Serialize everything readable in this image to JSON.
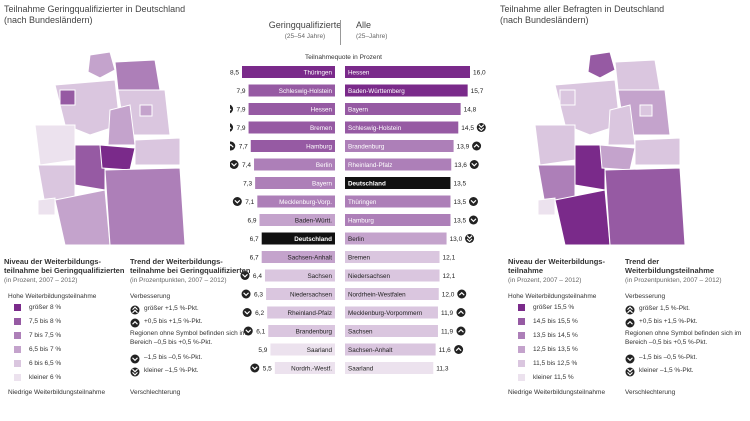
{
  "left_map": {
    "title": "Teilnahme Geringqualifizierter in Deutschland",
    "subtitle": "(nach Bundesländern)",
    "states": [
      "Schleswig-Holstein",
      "Mecklenburg-Vorpommern",
      "Hamburg",
      "Bremen",
      "Niedersachsen",
      "Berlin",
      "Brandenburg",
      "Sachsen-Anhalt",
      "Nordrhein-Westfalen",
      "Thüringen",
      "Sachsen",
      "Hessen",
      "Rheinland-Pfalz",
      "Saarland",
      "Baden-Württemberg",
      "Bayern"
    ]
  },
  "right_map": {
    "title": "Teilnahme aller Befragten in Deutschland",
    "subtitle": "(nach Bundesländern)",
    "states": [
      "Schleswig-Holstein",
      "Mecklenburg-Vorpommern",
      "Hamburg",
      "Bremen",
      "Niedersachsen",
      "Berlin",
      "Brandenburg",
      "Sachsen-Anhalt",
      "Nordrhein-Westfalen",
      "Thüringen",
      "Sachsen",
      "Hessen",
      "Rheinland-Pfalz",
      "Saarland",
      "Baden-Württemberg",
      "Bayern"
    ]
  },
  "center": {
    "header_left": "Geringqualifizierte",
    "header_left_sub": "(25–54 Jahre)",
    "header_right": "Alle",
    "header_right_sub": "(25–Jahre)",
    "unit": "Teilnahmequote in Prozent"
  },
  "legend_left": {
    "niveau_title_1": "Niveau der Weiterbildungs-",
    "niveau_title_2": "teilnahme bei Geringqualifizierten",
    "niveau_sub": "(in Prozent, 2007 – 2012)",
    "high": "Hohe Weiterbildungsteilnahme",
    "low": "Niedrige Weiterbildungsteilnahme",
    "items": [
      {
        "label": "größer 8 %",
        "color": "#7a2a8a"
      },
      {
        "label": "7,5 bis 8 %",
        "color": "#965aa3"
      },
      {
        "label": "7 bis 7,5 %",
        "color": "#ad7fb8"
      },
      {
        "label": "6,5 bis 7 %",
        "color": "#c4a3cc"
      },
      {
        "label": "6 bis 6,5 %",
        "color": "#dac6df"
      },
      {
        "label": "kleiner 6 %",
        "color": "#ece2ee"
      }
    ],
    "trend_title_1": "Trend der Weiterbildungs-",
    "trend_title_2": "teilnahme bei Geringqualifizierten",
    "trend_sub": "(in Prozentpunkten, 2007 – 2012)",
    "better": "Verbesserung",
    "worse": "Verschlechterung",
    "trend_items": [
      "größer +1,5 %-Pkt.",
      "+0,5 bis +1,5 %-Pkt.",
      "Regionen ohne Symbol befinden sich im Bereich –0,5 bis +0,5 %-Pkt.",
      "–1,5 bis –0,5 %-Pkt.",
      "kleiner –1,5 %-Pkt."
    ]
  },
  "legend_right": {
    "niveau_title_1": "Niveau der Weiterbildungs-",
    "niveau_title_2": "teilnahme",
    "niveau_sub": "(in Prozent, 2007 – 2012)",
    "high": "Hohe Weiterbildungsteilnahme",
    "low": "Niedrige Weiterbildungsteilnahme",
    "items": [
      {
        "label": "größer 15,5 %",
        "color": "#7a2a8a"
      },
      {
        "label": "14,5 bis 15,5 %",
        "color": "#965aa3"
      },
      {
        "label": "13,5 bis 14,5 %",
        "color": "#ad7fb8"
      },
      {
        "label": "12,5 bis 13,5 %",
        "color": "#c4a3cc"
      },
      {
        "label": "11,5 bis 12,5 %",
        "color": "#dac6df"
      },
      {
        "label": "kleiner 11,5 %",
        "color": "#ece2ee"
      }
    ],
    "trend_title_1": "Trend der Weiterbildungsteilnahme",
    "trend_sub": "(in Prozentpunkten, 2007 – 2012)",
    "better": "Verbesserung",
    "worse": "Verschlechterung",
    "trend_items": [
      "größer 1,5 %-Pkt.",
      "+0,5 bis +1,5 %-Pkt.",
      "Regionen ohne Symbol befinden sich im Bereich –0,5 bis +0,5 %-Pkt.",
      "–1,5 bis –0,5 %-Pkt.",
      "kleiner –1,5 %-Pkt."
    ]
  },
  "chart_data": {
    "type": "bar",
    "left_series": {
      "name": "Geringqualifizierte",
      "rows": [
        {
          "label": "Thüringen",
          "value": 8.5,
          "trend": "up2",
          "highlight": false
        },
        {
          "label": "Schleswig-Holstein",
          "value": 7.9,
          "trend": "",
          "highlight": false
        },
        {
          "label": "Hessen",
          "value": 7.9,
          "trend": "up1",
          "highlight": false
        },
        {
          "label": "Bremen",
          "value": 7.9,
          "trend": "up1",
          "highlight": false
        },
        {
          "label": "Hamburg",
          "value": 7.7,
          "trend": "up1",
          "highlight": false
        },
        {
          "label": "Berlin",
          "value": 7.4,
          "trend": "down1",
          "highlight": false
        },
        {
          "label": "Bayern",
          "value": 7.3,
          "trend": "",
          "highlight": false
        },
        {
          "label": "Mecklenburg-Vorp.",
          "value": 7.1,
          "trend": "down1",
          "highlight": false
        },
        {
          "label": "Baden-Württ.",
          "value": 6.9,
          "trend": "",
          "highlight": false
        },
        {
          "label": "Deutschland",
          "value": 6.7,
          "trend": "",
          "highlight": true
        },
        {
          "label": "Sachsen-Anhalt",
          "value": 6.7,
          "trend": "",
          "highlight": false
        },
        {
          "label": "Sachsen",
          "value": 6.4,
          "trend": "down1",
          "highlight": false
        },
        {
          "label": "Niedersachsen",
          "value": 6.3,
          "trend": "down1",
          "highlight": false
        },
        {
          "label": "Rheinland-Pfalz",
          "value": 6.2,
          "trend": "down1",
          "highlight": false
        },
        {
          "label": "Brandenburg",
          "value": 6.1,
          "trend": "down1",
          "highlight": false
        },
        {
          "label": "Saarland",
          "value": 5.9,
          "trend": "",
          "highlight": false
        },
        {
          "label": "Nordrh.-Westf.",
          "value": 5.5,
          "trend": "down1",
          "highlight": false
        }
      ]
    },
    "right_series": {
      "name": "Alle",
      "rows": [
        {
          "label": "Hessen",
          "value": 16.0,
          "trend": "",
          "highlight": false
        },
        {
          "label": "Baden-Württemberg",
          "value": 15.7,
          "trend": "",
          "highlight": false
        },
        {
          "label": "Bayern",
          "value": 14.8,
          "trend": "",
          "highlight": false
        },
        {
          "label": "Schleswig-Holstein",
          "value": 14.5,
          "trend": "down2",
          "highlight": false
        },
        {
          "label": "Brandenburg",
          "value": 13.9,
          "trend": "up1",
          "highlight": false
        },
        {
          "label": "Rheinland-Pfalz",
          "value": 13.6,
          "trend": "down1",
          "highlight": false
        },
        {
          "label": "Deutschland",
          "value": 13.5,
          "trend": "",
          "highlight": true
        },
        {
          "label": "Thüringen",
          "value": 13.5,
          "trend": "down1",
          "highlight": false
        },
        {
          "label": "Hamburg",
          "value": 13.5,
          "trend": "down1",
          "highlight": false
        },
        {
          "label": "Berlin",
          "value": 13.0,
          "trend": "down2",
          "highlight": false
        },
        {
          "label": "Bremen",
          "value": 12.1,
          "trend": "",
          "highlight": false
        },
        {
          "label": "Niedersachsen",
          "value": 12.1,
          "trend": "",
          "highlight": false
        },
        {
          "label": "Nordrhein-Westfalen",
          "value": 12.0,
          "trend": "up1",
          "highlight": false
        },
        {
          "label": "Mecklenburg-Vorpommern",
          "value": 11.9,
          "trend": "up1",
          "highlight": false
        },
        {
          "label": "Sachsen",
          "value": 11.9,
          "trend": "up1",
          "highlight": false
        },
        {
          "label": "Sachsen-Anhalt",
          "value": 11.6,
          "trend": "up1",
          "highlight": false
        },
        {
          "label": "Saarland",
          "value": 11.3,
          "trend": "",
          "highlight": false
        }
      ]
    }
  }
}
